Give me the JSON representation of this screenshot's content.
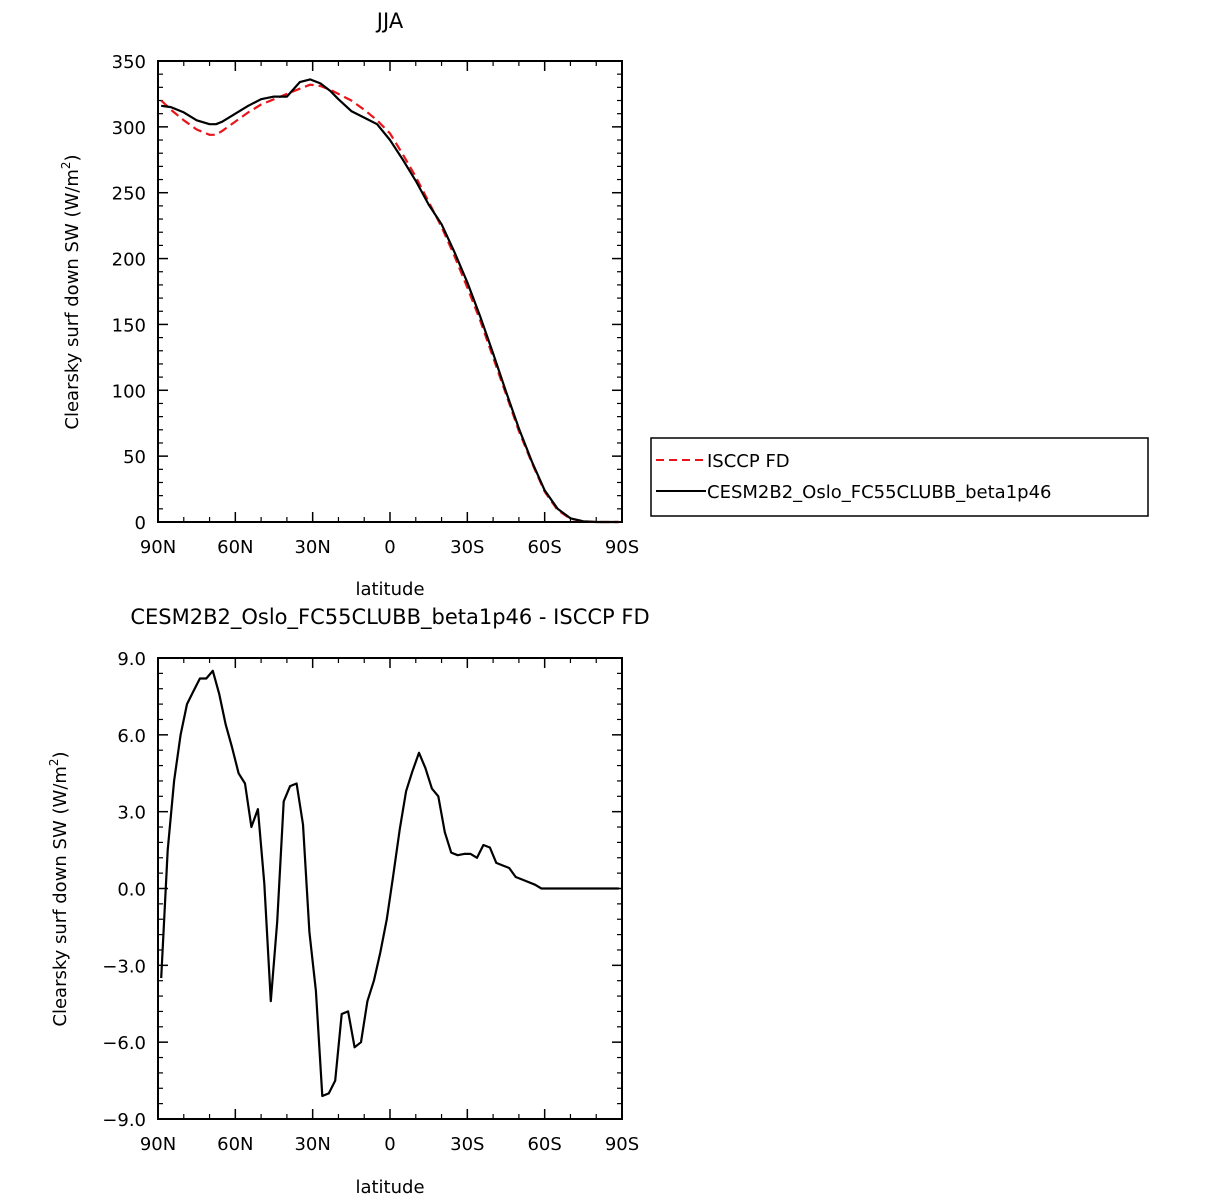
{
  "chart_data": [
    {
      "type": "line",
      "title": "JJA",
      "xlabel": "latitude",
      "ylabel": "Clearsky surf down SW (W/m",
      "ylabel_sup": "2",
      "ylabel_tail": ")",
      "xlim": [
        90,
        -90
      ],
      "ylim": [
        0,
        350
      ],
      "xticks": [
        {
          "v": 90,
          "label": "90N"
        },
        {
          "v": 60,
          "label": "60N"
        },
        {
          "v": 30,
          "label": "30N"
        },
        {
          "v": 0,
          "label": "0"
        },
        {
          "v": -30,
          "label": "30S"
        },
        {
          "v": -60,
          "label": "60S"
        },
        {
          "v": -90,
          "label": "90S"
        }
      ],
      "yticks": [
        {
          "v": 0,
          "label": "0"
        },
        {
          "v": 50,
          "label": "50"
        },
        {
          "v": 100,
          "label": "100"
        },
        {
          "v": 150,
          "label": "150"
        },
        {
          "v": 200,
          "label": "200"
        },
        {
          "v": 250,
          "label": "250"
        },
        {
          "v": 300,
          "label": "300"
        },
        {
          "v": 350,
          "label": "350"
        }
      ],
      "legend_position": "right",
      "series": [
        {
          "name": "ISCCP FD",
          "color": "#e8141a",
          "dash": "dashed",
          "x": [
            88.75,
            85,
            80,
            75,
            70,
            67.5,
            65,
            60,
            55,
            50,
            45,
            40,
            35,
            31,
            27,
            23,
            20,
            15,
            10,
            5,
            0,
            -5,
            -10,
            -15,
            -20,
            -25,
            -30,
            -35,
            -40,
            -45,
            -50,
            -55,
            -60,
            -65,
            -70,
            -75,
            -80,
            -85,
            -88.75
          ],
          "y": [
            320,
            313,
            305,
            298,
            294,
            294,
            297,
            304,
            311,
            317,
            321,
            325,
            329,
            332,
            331,
            328,
            325,
            320,
            313,
            305,
            295,
            279,
            262,
            243,
            224,
            202,
            178,
            153,
            125,
            97,
            69,
            45,
            23,
            9,
            2.5,
            0.5,
            0,
            0,
            0
          ]
        },
        {
          "name": "CESM2B2_Oslo_FC55CLUBB_beta1p46",
          "color": "#000000",
          "dash": "solid",
          "x": [
            88.75,
            85,
            80,
            75,
            70,
            67.5,
            65,
            60,
            55,
            50,
            45,
            40,
            35,
            31,
            27,
            23,
            20,
            15,
            10,
            5,
            0,
            -5,
            -10,
            -15,
            -20,
            -25,
            -30,
            -35,
            -40,
            -45,
            -50,
            -55,
            -60,
            -65,
            -70,
            -75,
            -80,
            -85,
            -88.75
          ],
          "y": [
            316,
            315,
            311,
            305,
            302,
            302,
            304,
            310,
            316,
            321,
            323,
            323,
            334,
            336,
            333,
            327,
            321,
            312,
            307,
            302,
            290,
            275,
            259,
            241,
            226,
            205,
            182,
            156,
            128,
            99,
            71,
            46,
            24,
            10,
            2.8,
            0.5,
            0,
            0,
            0
          ]
        }
      ]
    },
    {
      "type": "line",
      "title": "CESM2B2_Oslo_FC55CLUBB_beta1p46 - ISCCP FD",
      "xlabel": "latitude",
      "ylabel": "Clearsky surf down SW (W/m",
      "ylabel_sup": "2",
      "ylabel_tail": ")",
      "xlim": [
        90,
        -90
      ],
      "ylim": [
        -9,
        9
      ],
      "xticks": [
        {
          "v": 90,
          "label": "90N"
        },
        {
          "v": 60,
          "label": "60N"
        },
        {
          "v": 30,
          "label": "30N"
        },
        {
          "v": 0,
          "label": "0"
        },
        {
          "v": -30,
          "label": "30S"
        },
        {
          "v": -60,
          "label": "60S"
        },
        {
          "v": -90,
          "label": "90S"
        }
      ],
      "yticks": [
        {
          "v": -9,
          "label": "−9.0"
        },
        {
          "v": -6,
          "label": "−6.0"
        },
        {
          "v": -3,
          "label": "−3.0"
        },
        {
          "v": 0,
          "label": "0.0"
        },
        {
          "v": 3,
          "label": "3.0"
        },
        {
          "v": 6,
          "label": "6.0"
        },
        {
          "v": 9,
          "label": "9.0"
        }
      ],
      "series": [
        {
          "name": "",
          "color": "#000000",
          "dash": "solid",
          "x": [
            88.75,
            86.25,
            83.75,
            81.25,
            78.75,
            76.25,
            73.75,
            71.25,
            68.75,
            66.25,
            63.75,
            61.25,
            58.75,
            56.25,
            53.75,
            51.25,
            48.75,
            46.25,
            43.75,
            41.25,
            38.75,
            36.25,
            33.75,
            31.25,
            28.75,
            26.25,
            23.75,
            21.25,
            18.75,
            16.25,
            13.75,
            11.25,
            8.75,
            6.25,
            3.75,
            1.25,
            -1.25,
            -3.75,
            -6.25,
            -8.75,
            -11.25,
            -13.75,
            -16.25,
            -18.75,
            -21.25,
            -23.75,
            -26.25,
            -28.75,
            -31.25,
            -33.75,
            -36.25,
            -38.75,
            -41.25,
            -43.75,
            -46.25,
            -48.75,
            -51.25,
            -53.75,
            -56.25,
            -58.75,
            -61.25,
            -63.75,
            -66.25,
            -68.75,
            -71.25,
            -73.75,
            -76.25,
            -78.75,
            -81.25,
            -83.75,
            -86.25,
            -88.75
          ],
          "y": [
            -3.5,
            1.5,
            4.2,
            6.0,
            7.2,
            7.7,
            8.2,
            8.2,
            8.5,
            7.6,
            6.4,
            5.5,
            4.5,
            4.1,
            2.4,
            3.1,
            0.2,
            -4.4,
            -1.3,
            3.4,
            4.0,
            4.1,
            2.5,
            -1.7,
            -4.0,
            -8.1,
            -8.0,
            -7.5,
            -4.9,
            -4.8,
            -6.2,
            -6.0,
            -4.4,
            -3.6,
            -2.5,
            -1.2,
            0.5,
            2.3,
            3.8,
            4.6,
            5.3,
            4.7,
            3.9,
            3.6,
            2.2,
            1.4,
            1.3,
            1.35,
            1.35,
            1.2,
            1.7,
            1.6,
            1.0,
            0.9,
            0.8,
            0.45,
            0.35,
            0.25,
            0.15,
            0.0,
            0.0,
            0.0,
            0.0,
            0.0,
            0.0,
            0.0,
            0.0,
            0.0,
            0.0,
            0.0,
            0.0,
            0.0
          ]
        }
      ]
    }
  ]
}
